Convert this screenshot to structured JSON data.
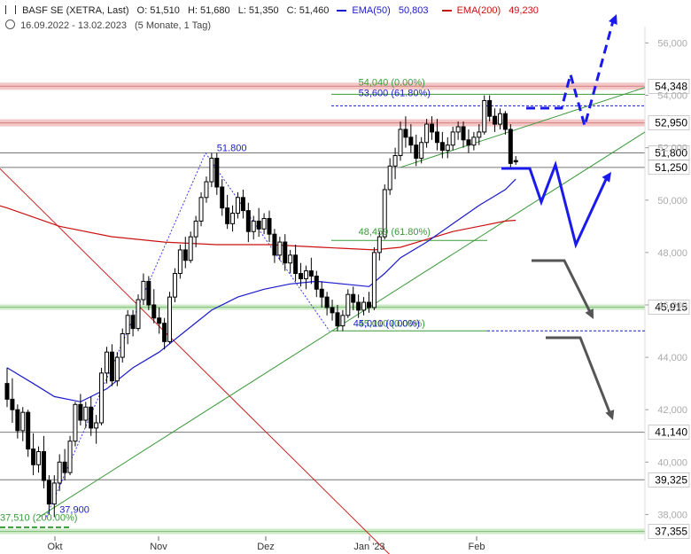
{
  "header": {
    "symbol": "BASF SE (XETRA, Last)",
    "open": "O: 51,510",
    "high": "H: 51,680",
    "low": "L: 51,350",
    "close": "C: 51,460",
    "ema50_label": "EMA(50)",
    "ema50_value": "50,803",
    "ema200_label": "EMA(200)",
    "ema200_value": "49,230",
    "range": "16.09.2022 - 13.02.2023",
    "period": "(5 Monate, 1 Tag)"
  },
  "colors": {
    "candle": "#000000",
    "ema50": "#1a1acc",
    "ema200": "#cc1111",
    "trend": "#3a9a3a",
    "resistance_band": "#f2b8b8",
    "support_band": "#c8e8c0",
    "projection_blue": "#1a1aee",
    "projection_grey": "#555555"
  },
  "chart_data": {
    "type": "candlestick",
    "x_labels": [
      "Okt",
      "Nov",
      "Dez",
      "Jan '23",
      "Feb"
    ],
    "y_ticks": [
      38,
      40,
      42,
      44,
      46,
      48,
      50,
      52,
      54,
      56
    ],
    "y_tick_labels": [
      "38,000",
      "40,000",
      "42,000",
      "44,000",
      "46,000",
      "48,000",
      "50,000",
      "52,000",
      "54,000",
      "56,000"
    ],
    "ylim": [
      37.0,
      57.3
    ],
    "candles": [
      [
        43.0,
        43.6,
        42.1,
        42.4
      ],
      [
        42.4,
        43.2,
        41.5,
        42.0
      ],
      [
        42.0,
        42.2,
        40.9,
        41.2
      ],
      [
        41.2,
        42.1,
        40.8,
        41.9
      ],
      [
        41.9,
        42.0,
        40.2,
        40.5
      ],
      [
        40.5,
        41.1,
        39.5,
        39.9
      ],
      [
        39.9,
        40.6,
        39.6,
        40.4
      ],
      [
        40.4,
        41.0,
        39.0,
        39.3
      ],
      [
        39.3,
        39.5,
        38.0,
        38.4
      ],
      [
        38.4,
        39.5,
        37.9,
        39.2
      ],
      [
        39.2,
        40.3,
        38.9,
        40.0
      ],
      [
        40.0,
        40.5,
        39.3,
        39.6
      ],
      [
        39.6,
        41.0,
        39.5,
        40.8
      ],
      [
        40.8,
        42.3,
        40.6,
        42.2
      ],
      [
        42.2,
        42.6,
        41.4,
        41.6
      ],
      [
        41.6,
        42.3,
        41.3,
        42.1
      ],
      [
        42.1,
        42.5,
        41.0,
        41.3
      ],
      [
        41.3,
        41.8,
        40.7,
        41.5
      ],
      [
        41.5,
        43.6,
        41.4,
        43.4
      ],
      [
        43.4,
        44.4,
        43.0,
        44.2
      ],
      [
        44.2,
        44.5,
        42.9,
        43.1
      ],
      [
        43.1,
        44.2,
        42.9,
        44.0
      ],
      [
        44.0,
        45.1,
        43.8,
        44.9
      ],
      [
        44.9,
        45.8,
        44.5,
        45.6
      ],
      [
        45.6,
        45.8,
        44.8,
        45.1
      ],
      [
        45.1,
        46.4,
        45.0,
        46.2
      ],
      [
        46.2,
        47.2,
        46.0,
        46.9
      ],
      [
        46.9,
        47.1,
        45.8,
        46.0
      ],
      [
        46.0,
        46.6,
        45.3,
        45.5
      ],
      [
        45.5,
        45.9,
        44.9,
        45.3
      ],
      [
        45.3,
        45.5,
        44.3,
        44.6
      ],
      [
        44.6,
        46.5,
        44.5,
        46.3
      ],
      [
        46.3,
        47.4,
        46.1,
        47.2
      ],
      [
        47.2,
        48.3,
        47.0,
        48.1
      ],
      [
        48.1,
        48.6,
        47.4,
        47.7
      ],
      [
        47.7,
        48.8,
        47.6,
        48.6
      ],
      [
        48.6,
        49.4,
        48.2,
        49.2
      ],
      [
        49.2,
        50.3,
        49.0,
        50.1
      ],
      [
        50.1,
        50.9,
        49.9,
        50.7
      ],
      [
        50.7,
        51.8,
        50.5,
        51.6
      ],
      [
        51.6,
        51.8,
        50.2,
        50.5
      ],
      [
        50.5,
        50.8,
        49.4,
        49.7
      ],
      [
        49.7,
        50.2,
        48.9,
        49.1
      ],
      [
        49.1,
        49.8,
        48.8,
        49.5
      ],
      [
        49.5,
        50.3,
        49.3,
        50.1
      ],
      [
        50.1,
        50.4,
        49.3,
        49.6
      ],
      [
        49.6,
        49.9,
        48.4,
        48.8
      ],
      [
        48.8,
        49.4,
        48.5,
        49.2
      ],
      [
        49.2,
        49.7,
        48.6,
        48.9
      ],
      [
        48.9,
        49.5,
        48.7,
        49.3
      ],
      [
        49.3,
        49.6,
        48.4,
        48.7
      ],
      [
        48.7,
        48.9,
        47.6,
        47.9
      ],
      [
        47.9,
        48.6,
        47.7,
        48.4
      ],
      [
        48.4,
        48.7,
        47.3,
        47.6
      ],
      [
        47.6,
        48.1,
        47.2,
        47.9
      ],
      [
        47.9,
        48.3,
        46.9,
        47.2
      ],
      [
        47.2,
        47.6,
        46.7,
        47.0
      ],
      [
        47.0,
        47.5,
        46.6,
        47.3
      ],
      [
        47.3,
        47.8,
        46.8,
        47.1
      ],
      [
        47.1,
        47.3,
        46.3,
        46.6
      ],
      [
        46.6,
        46.9,
        45.9,
        46.3
      ],
      [
        46.3,
        46.5,
        45.6,
        45.9
      ],
      [
        45.9,
        46.2,
        45.4,
        45.7
      ],
      [
        45.7,
        46.0,
        45.0,
        45.2
      ],
      [
        45.2,
        45.8,
        45.0,
        45.6
      ],
      [
        45.6,
        46.6,
        45.5,
        46.4
      ],
      [
        46.4,
        46.7,
        45.8,
        46.1
      ],
      [
        46.1,
        46.4,
        45.5,
        45.8
      ],
      [
        45.8,
        46.3,
        45.6,
        46.1
      ],
      [
        46.1,
        46.5,
        45.7,
        45.9
      ],
      [
        45.9,
        48.2,
        45.8,
        48.0
      ],
      [
        48.0,
        48.8,
        47.7,
        48.6
      ],
      [
        48.6,
        50.6,
        48.5,
        50.4
      ],
      [
        50.4,
        51.6,
        50.2,
        51.3
      ],
      [
        51.3,
        52.0,
        50.8,
        51.7
      ],
      [
        51.7,
        53.0,
        51.5,
        52.7
      ],
      [
        52.7,
        53.2,
        52.0,
        52.4
      ],
      [
        52.4,
        52.9,
        51.8,
        52.1
      ],
      [
        52.1,
        52.5,
        51.3,
        51.6
      ],
      [
        51.6,
        52.4,
        51.4,
        52.2
      ],
      [
        52.2,
        53.1,
        52.0,
        52.9
      ],
      [
        52.9,
        53.2,
        52.3,
        52.6
      ],
      [
        52.6,
        53.1,
        51.9,
        52.2
      ],
      [
        52.2,
        52.6,
        51.6,
        51.9
      ],
      [
        51.9,
        52.4,
        51.6,
        52.1
      ],
      [
        52.1,
        52.8,
        51.9,
        52.6
      ],
      [
        52.6,
        53.0,
        52.3,
        52.8
      ],
      [
        52.8,
        53.0,
        52.0,
        52.3
      ],
      [
        52.3,
        52.7,
        51.8,
        52.1
      ],
      [
        52.1,
        52.6,
        51.9,
        52.4
      ],
      [
        52.4,
        52.9,
        52.1,
        52.6
      ],
      [
        52.6,
        54.0,
        52.5,
        53.8
      ],
      [
        53.8,
        54.0,
        53.0,
        53.2
      ],
      [
        53.2,
        53.5,
        52.6,
        52.9
      ],
      [
        52.9,
        53.5,
        52.7,
        53.3
      ],
      [
        53.3,
        53.4,
        52.5,
        52.7
      ],
      [
        52.7,
        52.9,
        51.2,
        51.4
      ],
      [
        51.51,
        51.68,
        51.35,
        51.46
      ]
    ],
    "ema50": [
      [
        0,
        43.6
      ],
      [
        5,
        43.0
      ],
      [
        9,
        42.5
      ],
      [
        14,
        42.3
      ],
      [
        19,
        42.8
      ],
      [
        24,
        43.6
      ],
      [
        29,
        44.2
      ],
      [
        34,
        45.0
      ],
      [
        39,
        45.8
      ],
      [
        44,
        46.3
      ],
      [
        49,
        46.6
      ],
      [
        54,
        46.8
      ],
      [
        59,
        46.9
      ],
      [
        64,
        46.8
      ],
      [
        69,
        46.7
      ],
      [
        72,
        47.2
      ],
      [
        75,
        47.8
      ],
      [
        80,
        48.4
      ],
      [
        85,
        49.1
      ],
      [
        90,
        49.8
      ],
      [
        95,
        50.4
      ],
      [
        97,
        50.8
      ]
    ],
    "ema200": [
      [
        -10,
        50.3
      ],
      [
        0,
        49.7
      ],
      [
        10,
        49.0
      ],
      [
        20,
        48.6
      ],
      [
        30,
        48.4
      ],
      [
        40,
        48.3
      ],
      [
        50,
        48.3
      ],
      [
        60,
        48.2
      ],
      [
        70,
        48.1
      ],
      [
        75,
        48.2
      ],
      [
        80,
        48.5
      ],
      [
        85,
        48.8
      ],
      [
        90,
        49.0
      ],
      [
        95,
        49.2
      ],
      [
        97,
        49.23
      ]
    ],
    "horizontal_levels": [
      {
        "value": 54.348,
        "label": "54,348",
        "style": "resistance"
      },
      {
        "value": 52.95,
        "label": "52,950",
        "style": "resistance"
      },
      {
        "value": 51.8,
        "label": "51,800",
        "style": "line"
      },
      {
        "value": 51.25,
        "label": "51,250",
        "style": "line"
      },
      {
        "value": 45.915,
        "label": "45,915",
        "style": "support"
      },
      {
        "value": 41.14,
        "label": "41,140",
        "style": "line"
      },
      {
        "value": 39.325,
        "label": "39,325",
        "style": "line"
      },
      {
        "value": 37.355,
        "label": "37,355",
        "style": "support"
      }
    ],
    "annotations": [
      {
        "text": "51.800",
        "x": 40,
        "y": 51.8,
        "color": "#1a1acc"
      },
      {
        "text": "37,900",
        "x": 10,
        "y": 38.0,
        "color": "#1a1acc"
      },
      {
        "text": "37,510 (200.00%)",
        "x": 0,
        "y": 37.7,
        "color": "#3a9a3a"
      },
      {
        "text": "54,040 (0.00%)",
        "x": 67,
        "y": 54.3,
        "color": "#3a9a3a"
      },
      {
        "text": "53,600 (61.80%)",
        "x": 67,
        "y": 53.9,
        "color": "#1a1acc"
      },
      {
        "text": "48,459 (61.80%)",
        "x": 67,
        "y": 48.6,
        "color": "#3a9a3a"
      },
      {
        "text": "45,010 (0.00%)",
        "x": 67,
        "y": 45.1,
        "color": "#3a9a3a"
      },
      {
        "text": "45,010 (0.00%)",
        "x": 66,
        "y": 45.1,
        "color": "#1a1acc"
      }
    ]
  }
}
